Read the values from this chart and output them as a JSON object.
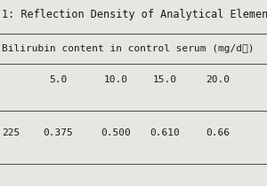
{
  "title": "1: Reflection Density of Analytical Elemen",
  "header_row": "Bilirubin content in control serum (mg/dℓ)",
  "col_labels": [
    "5.0",
    "10.0",
    "15.0",
    "20.0"
  ],
  "row_label": "225",
  "row_values": [
    "0.375",
    "0.500",
    "0.610",
    "0.66"
  ],
  "bg_color": "#e8e6e0",
  "text_color": "#1a1a1a",
  "font_family": "monospace",
  "title_fontsize": 8.5,
  "header_fontsize": 8.0,
  "cell_fontsize": 8.0,
  "line_color": "#555555",
  "line_width": 0.8
}
